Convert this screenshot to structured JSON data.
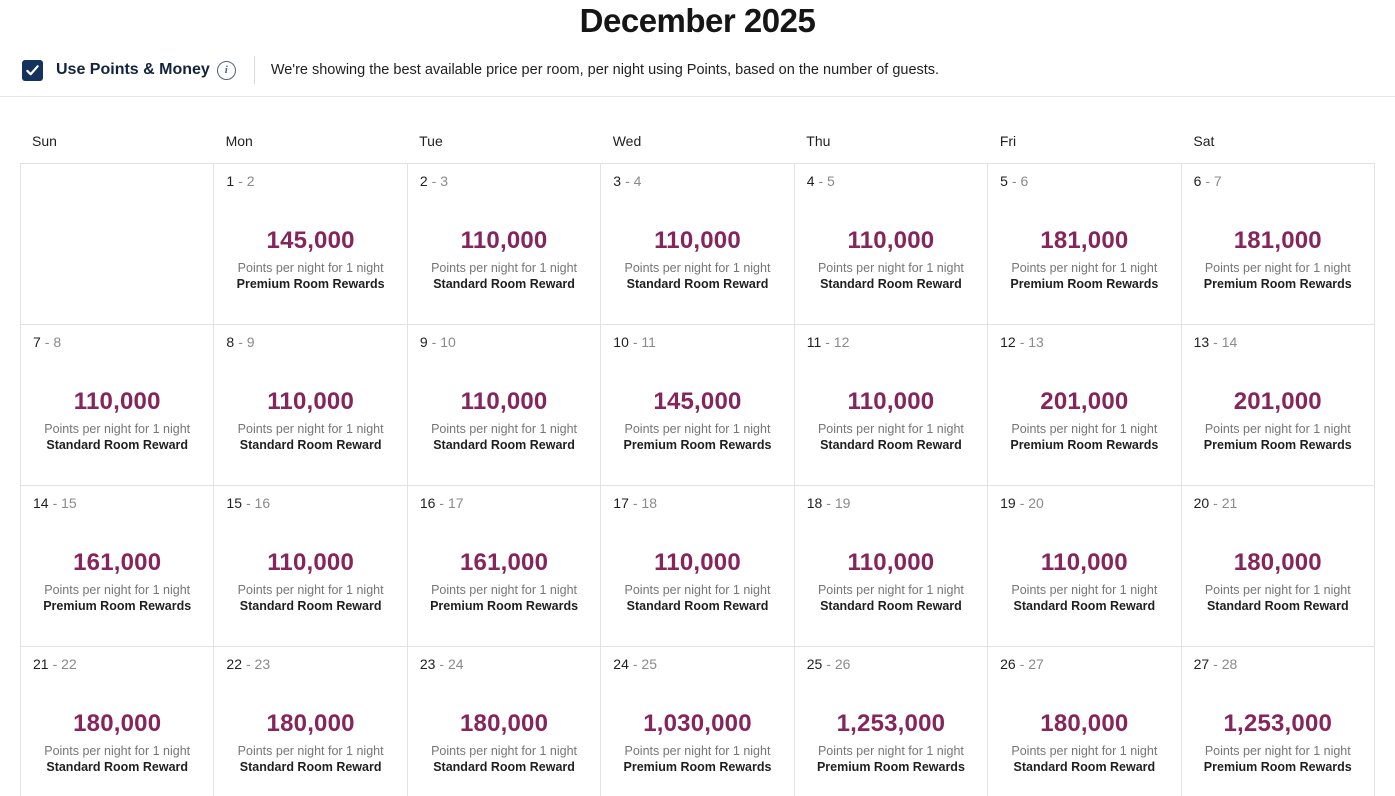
{
  "title": "December 2025",
  "controls": {
    "checkbox_label": "Use Points & Money",
    "checkbox_checked": true,
    "description": "We're showing the best available price per room, per night using Points, based on the number of guests."
  },
  "colors": {
    "points_accent": "#85255b",
    "checkbox_navy": "#15315e",
    "muted_text": "#767676",
    "grid_border": "#e3e3e3"
  },
  "calendar": {
    "day_headers": [
      "Sun",
      "Mon",
      "Tue",
      "Wed",
      "Thu",
      "Fri",
      "Sat"
    ],
    "points_caption": "Points per night for 1 night",
    "weeks": [
      [
        null,
        {
          "start": "1",
          "end": "- 2",
          "points": "145,000",
          "room": "Premium Room Rewards"
        },
        {
          "start": "2",
          "end": "- 3",
          "points": "110,000",
          "room": "Standard Room Reward"
        },
        {
          "start": "3",
          "end": "- 4",
          "points": "110,000",
          "room": "Standard Room Reward"
        },
        {
          "start": "4",
          "end": "- 5",
          "points": "110,000",
          "room": "Standard Room Reward"
        },
        {
          "start": "5",
          "end": "- 6",
          "points": "181,000",
          "room": "Premium Room Rewards"
        },
        {
          "start": "6",
          "end": "- 7",
          "points": "181,000",
          "room": "Premium Room Rewards"
        }
      ],
      [
        {
          "start": "7",
          "end": "- 8",
          "points": "110,000",
          "room": "Standard Room Reward"
        },
        {
          "start": "8",
          "end": "- 9",
          "points": "110,000",
          "room": "Standard Room Reward"
        },
        {
          "start": "9",
          "end": "- 10",
          "points": "110,000",
          "room": "Standard Room Reward"
        },
        {
          "start": "10",
          "end": "- 11",
          "points": "145,000",
          "room": "Premium Room Rewards"
        },
        {
          "start": "11",
          "end": "- 12",
          "points": "110,000",
          "room": "Standard Room Reward"
        },
        {
          "start": "12",
          "end": "- 13",
          "points": "201,000",
          "room": "Premium Room Rewards"
        },
        {
          "start": "13",
          "end": "- 14",
          "points": "201,000",
          "room": "Premium Room Rewards"
        }
      ],
      [
        {
          "start": "14",
          "end": "- 15",
          "points": "161,000",
          "room": "Premium Room Rewards"
        },
        {
          "start": "15",
          "end": "- 16",
          "points": "110,000",
          "room": "Standard Room Reward"
        },
        {
          "start": "16",
          "end": "- 17",
          "points": "161,000",
          "room": "Premium Room Rewards"
        },
        {
          "start": "17",
          "end": "- 18",
          "points": "110,000",
          "room": "Standard Room Reward"
        },
        {
          "start": "18",
          "end": "- 19",
          "points": "110,000",
          "room": "Standard Room Reward"
        },
        {
          "start": "19",
          "end": "- 20",
          "points": "110,000",
          "room": "Standard Room Reward"
        },
        {
          "start": "20",
          "end": "- 21",
          "points": "180,000",
          "room": "Standard Room Reward"
        }
      ],
      [
        {
          "start": "21",
          "end": "- 22",
          "points": "180,000",
          "room": "Standard Room Reward"
        },
        {
          "start": "22",
          "end": "- 23",
          "points": "180,000",
          "room": "Standard Room Reward"
        },
        {
          "start": "23",
          "end": "- 24",
          "points": "180,000",
          "room": "Standard Room Reward"
        },
        {
          "start": "24",
          "end": "- 25",
          "points": "1,030,000",
          "room": "Premium Room Rewards"
        },
        {
          "start": "25",
          "end": "- 26",
          "points": "1,253,000",
          "room": "Premium Room Rewards"
        },
        {
          "start": "26",
          "end": "- 27",
          "points": "180,000",
          "room": "Standard Room Reward"
        },
        {
          "start": "27",
          "end": "- 28",
          "points": "1,253,000",
          "room": "Premium Room Rewards"
        }
      ]
    ]
  }
}
